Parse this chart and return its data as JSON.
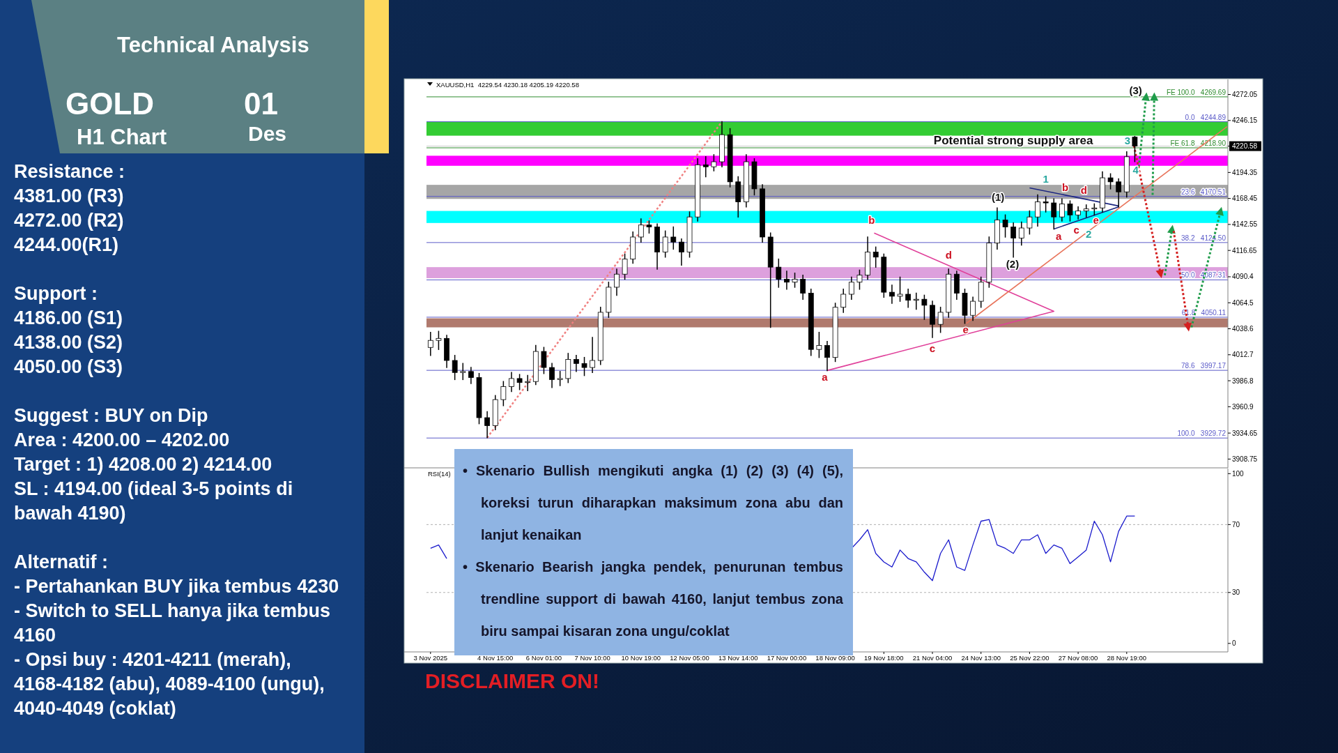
{
  "chart_data": [
    {
      "type": "other",
      "title": "Technical Analysis",
      "annotations": [
        "GOLD",
        "H1 Chart",
        "01",
        "Des",
        "Resistance :\n4381.00 (R3)\n4272.00 (R2)\n4244.00(R1)",
        "Support :\n4186.00 (S1)\n4138.00 (S2)\n4050.00 (S3)",
        "Suggest : BUY on Dip\nArea : 4200.00 – 4202.00\nTarget : 1) 4208.00 2) 4214.00\nSL : 4194.00 (ideal 3-5 points di bawah 4190)",
        "Alternatif :\n- Pertahankan BUY jika tembus 4230\n- Switch to SELL hanya jika tembus 4160\n- Opsi buy : 4201-4211 (merah), 4168-4182 (abu), 4089-4100 (ungu), 4040-4049 (coklat)",
        "DISCLAIMER ON!"
      ]
    },
    {
      "type": "candlestick",
      "title": "XAUUSD,H1  4229.54 4230.18 4205.19 4220.58",
      "tick_labels": "y",
      "ylim": [
        3900,
        4287
      ],
      "yticks": [
        4272.05,
        4246.15,
        4220.58,
        4194.35,
        4168.45,
        4142.55,
        4116.65,
        4090.4,
        4064.5,
        4038.6,
        4012.7,
        3986.8,
        3960.9,
        3934.65,
        3908.75
      ],
      "ohlc": [
        [
          4020,
          4035,
          4012,
          4027
        ],
        [
          4027,
          4036,
          4018,
          4029
        ],
        [
          4029,
          4032,
          4000,
          4007
        ],
        [
          4007,
          4012,
          3988,
          3995
        ],
        [
          3995,
          4004,
          3988,
          3996
        ],
        [
          3996,
          4000,
          3984,
          3990
        ],
        [
          3990,
          3994,
          3944,
          3950
        ],
        [
          3950,
          3956,
          3930,
          3942
        ],
        [
          3942,
          3972,
          3938,
          3968
        ],
        [
          3968,
          3986,
          3962,
          3981
        ],
        [
          3981,
          3995,
          3976,
          3989
        ],
        [
          3989,
          3993,
          3978,
          3985
        ],
        [
          3985,
          3992,
          3977,
          3986
        ],
        [
          3986,
          4022,
          3983,
          4016
        ],
        [
          4016,
          4020,
          3994,
          4000
        ],
        [
          4000,
          4004,
          3980,
          3988
        ],
        [
          3988,
          3996,
          3982,
          3989
        ],
        [
          3989,
          4014,
          3985,
          4008
        ],
        [
          4008,
          4012,
          3996,
          4004
        ],
        [
          4004,
          4010,
          3992,
          4000
        ],
        [
          4000,
          4030,
          3995,
          4007
        ],
        [
          4007,
          4060,
          4003,
          4055
        ],
        [
          4055,
          4085,
          4050,
          4080
        ],
        [
          4080,
          4098,
          4072,
          4093
        ],
        [
          4093,
          4113,
          4088,
          4108
        ],
        [
          4108,
          4135,
          4104,
          4130
        ],
        [
          4130,
          4148,
          4125,
          4142
        ],
        [
          4142,
          4146,
          4134,
          4140
        ],
        [
          4140,
          4143,
          4098,
          4115
        ],
        [
          4115,
          4136,
          4110,
          4130
        ],
        [
          4130,
          4140,
          4118,
          4125
        ],
        [
          4125,
          4128,
          4102,
          4115
        ],
        [
          4115,
          4155,
          4110,
          4150
        ],
        [
          4150,
          4208,
          4146,
          4202
        ],
        [
          4202,
          4210,
          4190,
          4200
        ],
        [
          4200,
          4212,
          4196,
          4205
        ],
        [
          4205,
          4245,
          4200,
          4232
        ],
        [
          4232,
          4238,
          4180,
          4185
        ],
        [
          4185,
          4190,
          4150,
          4165
        ],
        [
          4165,
          4212,
          4160,
          4205
        ],
        [
          4205,
          4208,
          4172,
          4178
        ],
        [
          4178,
          4182,
          4125,
          4130
        ],
        [
          4130,
          4134,
          4040,
          4100
        ],
        [
          4100,
          4108,
          4080,
          4088
        ],
        [
          4088,
          4096,
          4078,
          4085
        ],
        [
          4085,
          4094,
          4080,
          4088
        ],
        [
          4088,
          4092,
          4068,
          4074
        ],
        [
          4074,
          4078,
          4012,
          4018
        ],
        [
          4018,
          4035,
          4010,
          4022
        ],
        [
          4022,
          4026,
          3997,
          4010
        ],
        [
          4010,
          4064,
          4006,
          4060
        ],
        [
          4060,
          4078,
          4055,
          4073
        ],
        [
          4073,
          4090,
          4068,
          4085
        ],
        [
          4085,
          4097,
          4078,
          4092
        ],
        [
          4092,
          4130,
          4088,
          4115
        ],
        [
          4115,
          4120,
          4100,
          4110
        ],
        [
          4110,
          4113,
          4070,
          4075
        ],
        [
          4075,
          4082,
          4064,
          4071
        ],
        [
          4071,
          4090,
          4066,
          4073
        ],
        [
          4073,
          4078,
          4060,
          4067
        ],
        [
          4067,
          4074,
          4058,
          4068
        ],
        [
          4068,
          4072,
          4048,
          4062
        ],
        [
          4062,
          4066,
          4030,
          4043
        ],
        [
          4043,
          4060,
          4035,
          4055
        ],
        [
          4055,
          4098,
          4050,
          4093
        ],
        [
          4093,
          4096,
          4068,
          4074
        ],
        [
          4074,
          4078,
          4044,
          4052
        ],
        [
          4052,
          4070,
          4047,
          4066
        ],
        [
          4066,
          4090,
          4060,
          4085
        ],
        [
          4085,
          4130,
          4080,
          4124
        ],
        [
          4124,
          4159,
          4118,
          4147
        ],
        [
          4147,
          4152,
          4130,
          4140
        ],
        [
          4140,
          4144,
          4110,
          4129
        ],
        [
          4129,
          4145,
          4122,
          4139
        ],
        [
          4139,
          4156,
          4133,
          4150
        ],
        [
          4150,
          4172,
          4141,
          4165
        ],
        [
          4165,
          4170,
          4155,
          4164
        ],
        [
          4164,
          4168,
          4138,
          4150
        ],
        [
          4150,
          4168,
          4146,
          4163
        ],
        [
          4163,
          4166,
          4146,
          4152
        ],
        [
          4152,
          4160,
          4148,
          4156
        ],
        [
          4156,
          4162,
          4150,
          4158
        ],
        [
          4158,
          4163,
          4152,
          4159
        ],
        [
          4159,
          4195,
          4155,
          4189
        ],
        [
          4189,
          4193,
          4178,
          4185
        ],
        [
          4185,
          4188,
          4160,
          4175
        ],
        [
          4175,
          4215,
          4170,
          4210
        ],
        [
          4229.54,
          4230.18,
          4205.19,
          4220.58
        ],
        null,
        null,
        null,
        null,
        null,
        null,
        null,
        null,
        null,
        null,
        null
      ],
      "bands": [
        {
          "axis": "y",
          "from": 4231,
          "to": 4245,
          "color": "#33cc33"
        },
        {
          "axis": "y",
          "from": 4201,
          "to": 4211,
          "color": "#ff00ff"
        },
        {
          "axis": "y",
          "from": 4168,
          "to": 4182,
          "color": "#a6a6a6"
        },
        {
          "axis": "y",
          "from": 4144,
          "to": 4156,
          "color": "#00ffff"
        },
        {
          "axis": "y",
          "from": 4089,
          "to": 4100,
          "color": "#dda0dd"
        },
        {
          "axis": "y",
          "from": 4040,
          "to": 4049,
          "color": "#b07a6e"
        }
      ],
      "ref_lines": [
        {
          "axis": "y",
          "value": 4269.69,
          "label": "FE 100.0   4269.69",
          "color": "#2e8b2e"
        },
        {
          "axis": "y",
          "value": 4244.89,
          "label": "0.0   4244.89",
          "color": "#5a5ac8"
        },
        {
          "axis": "y",
          "value": 4220.58,
          "color": "#c8c8c8"
        },
        {
          "axis": "y",
          "value": 4218.9,
          "label": "FE 61.8   4218.90",
          "color": "#2e8b2e"
        },
        {
          "axis": "y",
          "value": 4170.51,
          "label": "23.6   4170.51",
          "color": "#5a5ac8"
        },
        {
          "axis": "y",
          "value": 4124.5,
          "label": "38.2   4124.50",
          "color": "#5a5ac8"
        },
        {
          "axis": "y",
          "value": 4087.31,
          "label": "50.0   4087.31",
          "color": "#5a5ac8"
        },
        {
          "axis": "y",
          "value": 4050.11,
          "label": "61.8   4050.11",
          "color": "#5a5ac8"
        },
        {
          "axis": "y",
          "value": 3997.17,
          "label": "78.6   3997.17",
          "color": "#5a5ac8"
        },
        {
          "axis": "y",
          "value": 3929.72,
          "label": "100.0   3929.72",
          "color": "#5a5ac8"
        }
      ],
      "annotations": [
        "• Skenario Bullish mengikuti angka (1) (2) (3) (4) (5), koreksi turun diharapkan maksimum zona abu dan lanjut kenaikan",
        "• Skenario Bearish jangka pendek, penurunan tembus trendline support di bawah 4160, lanjut tembus zona biru sampai kisaran zona ungu/coklat",
        "Potential strong supply area",
        "a",
        {
          "text": "b",
          "y": 4147
        },
        "c",
        "d",
        "e",
        "(1)",
        "(2)",
        "1",
        "a",
        "b",
        "c",
        "d",
        "e",
        "2",
        "3",
        "4",
        "(3)"
      ],
      "series": [
        {
          "type": "line",
          "color": "#f08080",
          "line_style": "dotted",
          "values": [
            null,
            null,
            null,
            null,
            null,
            null,
            null,
            3930,
            null,
            null,
            null,
            null,
            null,
            null,
            null,
            null,
            null,
            null,
            null,
            null,
            null,
            null,
            null,
            null,
            null,
            null,
            null,
            null,
            null,
            null,
            null,
            null,
            null,
            null,
            null,
            null,
            4245,
            null,
            null,
            null,
            null,
            null,
            null,
            null,
            null,
            null,
            null,
            null,
            null,
            null,
            null,
            null,
            null,
            null,
            null,
            null,
            null,
            null,
            null,
            null,
            null,
            null,
            null,
            null,
            null,
            null,
            null,
            null,
            null,
            null,
            null,
            null,
            null,
            null,
            null,
            null,
            null,
            null,
            null,
            null,
            null,
            null,
            null,
            null,
            null,
            null,
            null,
            null,
            null,
            null,
            null,
            null,
            null,
            null,
            null,
            null,
            null,
            null,
            null
          ]
        },
        {
          "type": "line",
          "color": "#1c2680",
          "values": [
            null,
            null,
            null,
            null,
            null,
            null,
            null,
            null,
            null,
            null,
            null,
            null,
            null,
            null,
            null,
            null,
            null,
            null,
            null,
            null,
            null,
            null,
            null,
            null,
            null,
            null,
            null,
            null,
            null,
            null,
            null,
            null,
            null,
            null,
            null,
            null,
            null,
            null,
            null,
            null,
            null,
            null,
            null,
            null,
            null,
            null,
            null,
            null,
            null,
            null,
            null,
            null,
            null,
            null,
            null,
            null,
            null,
            null,
            null,
            null,
            null,
            null,
            null,
            null,
            null,
            null,
            null,
            null,
            null,
            null,
            null,
            null,
            null,
            null,
            4179,
            null,
            null,
            null,
            null,
            null,
            null,
            null,
            null,
            null,
            null,
            4161,
            null,
            null,
            null,
            null,
            null,
            null,
            null,
            null,
            null,
            null,
            null,
            null,
            null
          ]
        },
        {
          "type": "line",
          "color": "#1c2680",
          "values": [
            null,
            null,
            null,
            null,
            null,
            null,
            null,
            null,
            null,
            null,
            null,
            null,
            null,
            null,
            null,
            null,
            null,
            null,
            null,
            null,
            null,
            null,
            null,
            null,
            null,
            null,
            null,
            null,
            null,
            null,
            null,
            null,
            null,
            null,
            null,
            null,
            null,
            null,
            null,
            null,
            null,
            null,
            null,
            null,
            null,
            null,
            null,
            null,
            null,
            null,
            null,
            null,
            null,
            null,
            null,
            null,
            null,
            null,
            null,
            null,
            null,
            null,
            null,
            null,
            null,
            null,
            null,
            null,
            null,
            null,
            null,
            null,
            null,
            null,
            null,
            null,
            null,
            4138,
            null,
            null,
            null,
            null,
            null,
            null,
            null,
            4160,
            null,
            null,
            null,
            null,
            null,
            null,
            null,
            null,
            null,
            null,
            null,
            null,
            null
          ]
        }
      ]
    },
    {
      "type": "line",
      "title": "RSI(14)",
      "ylim": [
        -5,
        103
      ],
      "yticks": [
        0,
        30,
        70,
        100
      ],
      "categories": [
        "3 Nov 2025",
        null,
        null,
        null,
        null,
        null,
        null,
        null,
        "4 Nov 15:00",
        null,
        null,
        null,
        null,
        null,
        "6 Nov 01:00",
        null,
        null,
        null,
        null,
        null,
        "7 Nov 10:00",
        null,
        null,
        null,
        null,
        null,
        "10 Nov 19:00",
        null,
        null,
        null,
        null,
        null,
        "12 Nov 05:00",
        null,
        null,
        null,
        null,
        null,
        "13 Nov 14:00",
        null,
        null,
        null,
        null,
        null,
        "17 Nov 00:00",
        null,
        null,
        null,
        null,
        null,
        "18 Nov 09:00",
        null,
        null,
        null,
        null,
        null,
        "19 Nov 18:00",
        null,
        null,
        null,
        null,
        null,
        "21 Nov 04:00",
        null,
        null,
        null,
        null,
        null,
        "24 Nov 13:00",
        null,
        null,
        null,
        null,
        null,
        "25 Nov 22:00",
        null,
        null,
        null,
        null,
        null,
        "27 Nov 08:00",
        null,
        null,
        null,
        null,
        null,
        "28 Nov 19:00",
        null,
        null,
        null,
        null,
        null,
        null,
        null,
        null,
        null,
        null,
        null,
        null
      ],
      "ref_lines": [
        {
          "axis": "y",
          "value": 70,
          "color": "#b0b0b0",
          "line_style": "dotted"
        },
        {
          "axis": "y",
          "value": 30,
          "color": "#b0b0b0",
          "line_style": "dotted"
        }
      ],
      "series": [
        {
          "color": "#1a1acc",
          "values": [
            56,
            58,
            50,
            null,
            null,
            null,
            null,
            null,
            null,
            null,
            null,
            null,
            null,
            null,
            null,
            null,
            null,
            null,
            null,
            null,
            null,
            null,
            null,
            null,
            null,
            null,
            null,
            null,
            null,
            null,
            null,
            null,
            null,
            null,
            null,
            null,
            null,
            null,
            null,
            null,
            null,
            null,
            null,
            null,
            null,
            null,
            null,
            null,
            null,
            null,
            null,
            null,
            56,
            61,
            67,
            53,
            48,
            45,
            55,
            50,
            48,
            42,
            37,
            53,
            61,
            45,
            43,
            58,
            72,
            73,
            58,
            56,
            53,
            61,
            61,
            64,
            53,
            58,
            56,
            47,
            51,
            55,
            72,
            64,
            48,
            66,
            75,
            75,
            null,
            null,
            null,
            null,
            null,
            null,
            null,
            null,
            null,
            null,
            null
          ]
        }
      ]
    }
  ]
}
